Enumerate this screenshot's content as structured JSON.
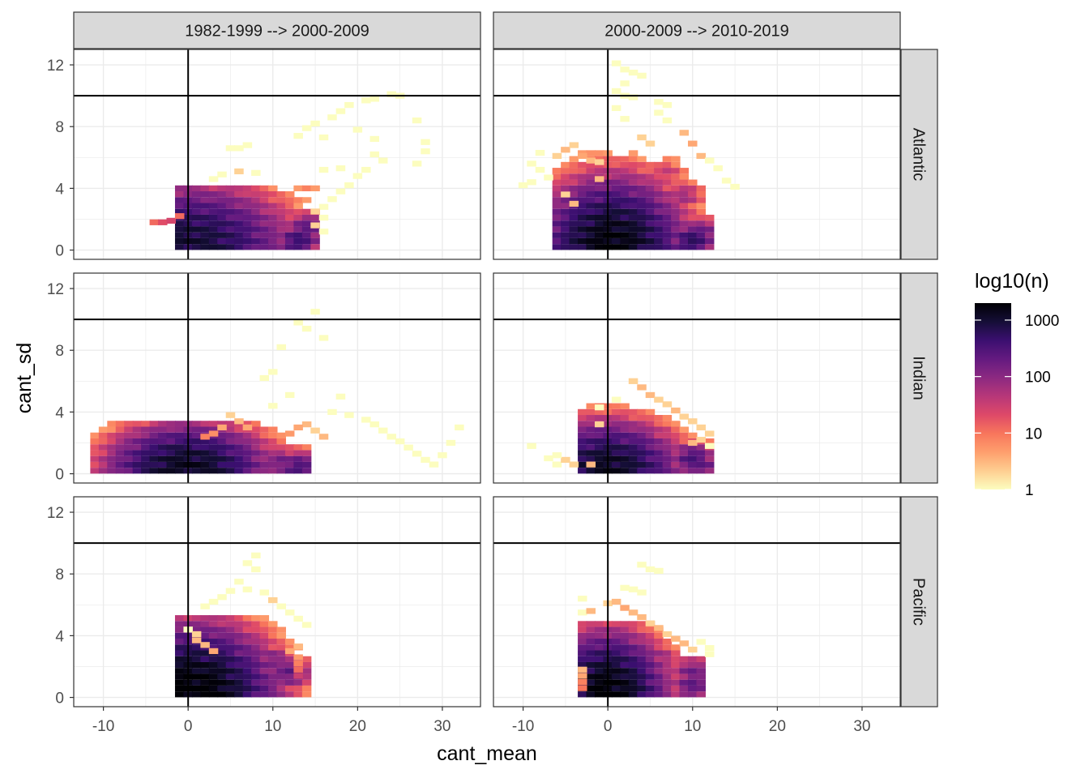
{
  "chart_data": {
    "type": "heatmap",
    "subtype": "faceted 2D histogram (bin2d)",
    "xlabel": "cant_mean",
    "ylabel": "cant_sd",
    "xlim": [
      -13.5,
      34.5
    ],
    "ylim": [
      -0.6,
      13.0
    ],
    "x_ticks": [
      -10,
      0,
      10,
      20,
      30
    ],
    "y_ticks": [
      0,
      4,
      8,
      12
    ],
    "x_ref_line": 0,
    "y_ref_line": 10,
    "column_facets": [
      "1982-1999 --> 2000-2009",
      "2000-2009 --> 2010-2019"
    ],
    "row_facets": [
      "Atlantic",
      "Indian",
      "Pacific"
    ],
    "fill": {
      "title": "log10(n)",
      "scale": "log10",
      "breaks": [
        1,
        10,
        100,
        1000
      ],
      "break_labels": [
        "1",
        "10",
        "100",
        "1000"
      ],
      "range": [
        1,
        2000
      ],
      "palette_magma_reversed": [
        "#FCFDBF",
        "#FECE91",
        "#FE9F6D",
        "#F8765C",
        "#DE4968",
        "#B73779",
        "#8C2981",
        "#641A80",
        "#3B0F70",
        "#150E37",
        "#000004"
      ]
    },
    "bin_width": {
      "x": 1.1,
      "y": 0.38
    },
    "cells_format": "[x_center, y_center, count]",
    "panels": [
      {
        "col": "1982-1999 --> 2000-2009",
        "row": "Atlantic",
        "cells": [
          [
            -4,
            1.8,
            12
          ],
          [
            -3,
            1.8,
            20
          ],
          [
            -2,
            1.9,
            25
          ],
          [
            -1,
            2.2,
            12
          ],
          [
            25,
            10.0,
            1
          ],
          [
            24,
            10.1,
            1
          ],
          [
            22,
            9.8,
            1
          ],
          [
            21,
            9.7,
            1
          ],
          [
            19,
            9.4,
            1
          ],
          [
            18,
            9.0,
            1
          ],
          [
            17,
            8.6,
            1
          ],
          [
            15,
            8.2,
            1
          ],
          [
            16,
            7.3,
            1
          ],
          [
            20,
            7.8,
            1
          ],
          [
            22,
            7.2,
            1
          ],
          [
            27,
            8.4,
            1
          ],
          [
            28,
            7.0,
            1
          ],
          [
            28,
            6.4,
            1
          ],
          [
            27,
            5.6,
            1
          ],
          [
            22,
            6.2,
            1
          ],
          [
            23,
            5.8,
            1
          ],
          [
            21,
            5.2,
            1
          ],
          [
            20,
            4.8,
            1
          ],
          [
            19,
            4.2,
            1
          ],
          [
            18,
            3.8,
            1
          ],
          [
            17,
            3.3,
            1
          ],
          [
            16,
            2.8,
            1
          ],
          [
            15,
            2.5,
            2
          ],
          [
            16,
            2.1,
            1
          ],
          [
            15,
            1.6,
            2
          ],
          [
            16,
            1.2,
            1
          ],
          [
            5,
            6.6,
            1
          ],
          [
            6,
            6.6,
            1
          ],
          [
            7,
            6.8,
            1
          ],
          [
            13,
            7.4,
            1
          ],
          [
            14,
            7.9,
            1
          ],
          [
            18,
            5.3,
            1
          ],
          [
            16,
            5.2,
            1
          ],
          [
            3,
            4.6,
            1
          ],
          [
            4,
            4.9,
            1
          ],
          [
            6,
            5.1,
            2
          ],
          [
            8,
            5.0,
            1
          ]
        ]
      },
      {
        "col": "2000-2009 --> 2010-2019",
        "row": "Atlantic",
        "cells": [
          [
            1,
            12.1,
            1
          ],
          [
            2,
            11.7,
            1
          ],
          [
            3,
            11.5,
            1
          ],
          [
            4,
            11.3,
            1
          ],
          [
            2,
            10.8,
            1
          ],
          [
            1,
            10.3,
            1
          ],
          [
            2,
            10.0,
            1
          ],
          [
            3,
            9.9,
            1
          ],
          [
            6,
            9.6,
            1
          ],
          [
            7,
            9.4,
            1
          ],
          [
            6,
            8.9,
            1
          ],
          [
            7,
            8.4,
            1
          ],
          [
            1,
            9.2,
            1
          ],
          [
            2,
            8.5,
            1
          ],
          [
            -10,
            4.2,
            1
          ],
          [
            -9,
            4.4,
            1
          ],
          [
            -9,
            5.6,
            1
          ],
          [
            -8,
            6.3,
            1
          ],
          [
            -8,
            5.2,
            1
          ],
          [
            -7,
            4.7,
            1
          ],
          [
            -6,
            4.0,
            1
          ],
          [
            -5,
            3.6,
            2
          ],
          [
            -4,
            3.0,
            3
          ],
          [
            -6,
            6.1,
            2
          ],
          [
            -5,
            6.5,
            3
          ],
          [
            -4,
            6.8,
            2
          ],
          [
            -3,
            6.1,
            4
          ],
          [
            -2,
            5.8,
            3
          ],
          [
            -1,
            5.7,
            2
          ],
          [
            -1,
            4.6,
            3
          ],
          [
            9,
            7.6,
            3
          ],
          [
            10,
            6.9,
            4
          ],
          [
            11,
            6.1,
            3
          ],
          [
            12,
            5.8,
            1
          ],
          [
            13,
            5.3,
            1
          ],
          [
            14,
            4.5,
            1
          ],
          [
            15,
            4.1,
            1
          ],
          [
            4,
            7.3,
            2
          ],
          [
            5,
            6.9,
            2
          ]
        ]
      },
      {
        "col": "1982-1999 --> 2000-2009",
        "row": "Indian",
        "cells": [
          [
            15,
            10.5,
            1
          ],
          [
            13,
            9.8,
            1
          ],
          [
            14,
            9.4,
            1
          ],
          [
            16,
            8.8,
            1
          ],
          [
            11,
            8.2,
            1
          ],
          [
            10,
            6.6,
            1
          ],
          [
            9,
            6.2,
            1
          ],
          [
            12,
            5.1,
            1
          ],
          [
            18,
            5.0,
            1
          ],
          [
            10,
            4.4,
            1
          ],
          [
            17,
            4.0,
            1
          ],
          [
            19,
            3.8,
            1
          ],
          [
            21,
            3.5,
            1
          ],
          [
            22,
            3.2,
            1
          ],
          [
            23,
            2.8,
            1
          ],
          [
            24,
            2.4,
            1
          ],
          [
            25,
            2.1,
            1
          ],
          [
            26,
            1.7,
            1
          ],
          [
            27,
            1.3,
            1
          ],
          [
            28,
            0.9,
            1
          ],
          [
            29,
            0.6,
            1
          ],
          [
            30,
            1.2,
            1
          ],
          [
            31,
            2.0,
            1
          ],
          [
            32,
            3.0,
            1
          ],
          [
            15,
            2.8,
            2
          ],
          [
            16,
            2.4,
            3
          ],
          [
            14,
            3.2,
            3
          ],
          [
            13,
            3.0,
            4
          ],
          [
            5,
            3.8,
            2
          ],
          [
            6,
            3.4,
            3
          ],
          [
            7,
            3.0,
            4
          ],
          [
            12,
            2.6,
            5
          ],
          [
            4,
            3.0,
            4
          ],
          [
            3,
            2.6,
            6
          ],
          [
            2,
            2.4,
            8
          ]
        ]
      },
      {
        "col": "2000-2009 --> 2010-2019",
        "row": "Indian",
        "cells": [
          [
            -9,
            1.8,
            1
          ],
          [
            -7,
            1.0,
            1
          ],
          [
            -6,
            0.6,
            1
          ],
          [
            -5,
            0.9,
            2
          ],
          [
            -4,
            0.6,
            2
          ],
          [
            -6,
            1.2,
            1
          ],
          [
            -2,
            0.6,
            3
          ],
          [
            3,
            6.0,
            2
          ],
          [
            4,
            5.6,
            3
          ],
          [
            5,
            5.1,
            3
          ],
          [
            6,
            4.8,
            2
          ],
          [
            7,
            4.5,
            2
          ],
          [
            8,
            4.1,
            3
          ],
          [
            9,
            3.7,
            2
          ],
          [
            10,
            3.4,
            2
          ],
          [
            11,
            3.0,
            2
          ],
          [
            12,
            2.6,
            2
          ],
          [
            10,
            2.0,
            3
          ],
          [
            11,
            2.2,
            2
          ],
          [
            12,
            1.8,
            1
          ],
          [
            -1,
            4.3,
            1
          ],
          [
            -1,
            3.2,
            2
          ],
          [
            1,
            4.8,
            1
          ]
        ]
      },
      {
        "col": "1982-1999 --> 2000-2009",
        "row": "Pacific",
        "cells": [
          [
            8,
            9.2,
            1
          ],
          [
            7,
            8.7,
            1
          ],
          [
            8,
            8.3,
            1
          ],
          [
            6,
            7.5,
            1
          ],
          [
            7,
            7.0,
            1
          ],
          [
            5,
            6.9,
            1
          ],
          [
            4,
            6.5,
            1
          ],
          [
            3,
            6.2,
            1
          ],
          [
            2,
            5.9,
            1
          ],
          [
            9,
            6.8,
            1
          ],
          [
            10,
            6.3,
            2
          ],
          [
            11,
            5.9,
            1
          ],
          [
            12,
            5.5,
            1
          ],
          [
            13,
            5.1,
            1
          ],
          [
            14,
            4.7,
            1
          ],
          [
            13,
            3.3,
            3
          ],
          [
            12,
            3.0,
            4
          ],
          [
            13,
            2.6,
            5
          ],
          [
            13,
            2.2,
            8
          ],
          [
            13,
            1.8,
            12
          ],
          [
            13,
            1.4,
            30
          ],
          [
            0,
            4.4,
            1
          ],
          [
            1,
            4.1,
            2
          ],
          [
            1,
            3.7,
            3
          ],
          [
            2,
            3.4,
            3
          ],
          [
            3,
            3.0,
            4
          ]
        ]
      },
      {
        "col": "2000-2009 --> 2010-2019",
        "row": "Pacific",
        "cells": [
          [
            5,
            8.3,
            1
          ],
          [
            4,
            8.6,
            1
          ],
          [
            6,
            8.2,
            1
          ],
          [
            2,
            7.1,
            1
          ],
          [
            3,
            7.0,
            1
          ],
          [
            4,
            6.8,
            1
          ],
          [
            -3,
            6.4,
            1
          ],
          [
            -3,
            5.5,
            1
          ],
          [
            -2,
            5.6,
            3
          ],
          [
            0,
            6.1,
            2
          ],
          [
            1,
            6.2,
            3
          ],
          [
            2,
            5.8,
            4
          ],
          [
            3,
            5.5,
            3
          ],
          [
            4,
            5.2,
            3
          ],
          [
            5,
            4.8,
            2
          ],
          [
            6,
            4.5,
            3
          ],
          [
            7,
            4.1,
            2
          ],
          [
            8,
            3.8,
            3
          ],
          [
            9,
            3.5,
            3
          ],
          [
            10,
            3.1,
            2
          ],
          [
            11,
            3.6,
            1
          ],
          [
            12,
            3.2,
            1
          ],
          [
            12,
            2.8,
            1
          ],
          [
            -3,
            1.8,
            3
          ],
          [
            -3,
            1.4,
            4
          ],
          [
            -3,
            1.0,
            8
          ],
          [
            -3,
            0.6,
            10
          ],
          [
            -3,
            0.2,
            12
          ]
        ]
      }
    ]
  }
}
